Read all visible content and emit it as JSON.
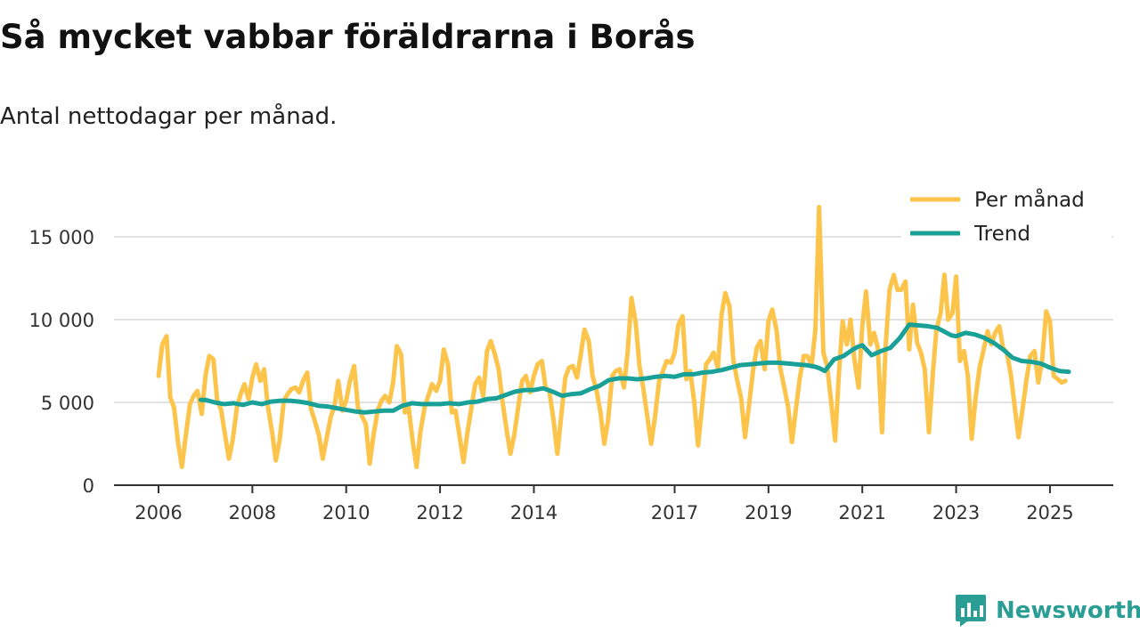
{
  "header": {
    "title": "Så mycket vabbar föräldrarna i Borås",
    "subtitle": "Antal nettodagar per månad."
  },
  "brand": {
    "name": "Newsworthy",
    "icon": "bar-chart-speech-bubble-icon",
    "color": "#2a9d94"
  },
  "chart_data": {
    "type": "line",
    "title": "Så mycket vabbar föräldrarna i Borås",
    "subtitle": "Antal nettodagar per månad.",
    "xlabel": "",
    "ylabel": "",
    "xlim": [
      2006.0,
      2025.4
    ],
    "ylim": [
      0,
      17000
    ],
    "x_ticks": [
      2006,
      2008,
      2010,
      2012,
      2014,
      2017,
      2019,
      2021,
      2023,
      2025
    ],
    "x_tick_labels": [
      "2006",
      "2008",
      "2010",
      "2012",
      "2014",
      "2017",
      "2019",
      "2021",
      "2023",
      "2025"
    ],
    "y_ticks": [
      0,
      5000,
      10000,
      15000
    ],
    "y_tick_labels": [
      "0",
      "5 000",
      "10 000",
      "15 000"
    ],
    "grid": true,
    "legend_position": "top-right",
    "series": [
      {
        "name": "Per månad",
        "color": "#fcc44b",
        "x": [
          2006.0,
          2006.08,
          2006.17,
          2006.25,
          2006.33,
          2006.42,
          2006.5,
          2006.58,
          2006.67,
          2006.75,
          2006.83,
          2006.92,
          2007.0,
          2007.08,
          2007.17,
          2007.25,
          2007.33,
          2007.42,
          2007.5,
          2007.58,
          2007.67,
          2007.75,
          2007.83,
          2007.92,
          2008.0,
          2008.08,
          2008.17,
          2008.25,
          2008.33,
          2008.42,
          2008.5,
          2008.58,
          2008.67,
          2008.75,
          2008.83,
          2008.92,
          2009.0,
          2009.08,
          2009.17,
          2009.25,
          2009.33,
          2009.42,
          2009.5,
          2009.58,
          2009.67,
          2009.75,
          2009.83,
          2009.92,
          2010.0,
          2010.08,
          2010.17,
          2010.25,
          2010.33,
          2010.42,
          2010.5,
          2010.58,
          2010.67,
          2010.75,
          2010.83,
          2010.92,
          2011.0,
          2011.08,
          2011.17,
          2011.25,
          2011.33,
          2011.42,
          2011.5,
          2011.58,
          2011.67,
          2011.75,
          2011.83,
          2011.92,
          2012.0,
          2012.08,
          2012.17,
          2012.25,
          2012.33,
          2012.42,
          2012.5,
          2012.58,
          2012.67,
          2012.75,
          2012.83,
          2012.92,
          2013.0,
          2013.08,
          2013.17,
          2013.25,
          2013.33,
          2013.42,
          2013.5,
          2013.58,
          2013.67,
          2013.75,
          2013.83,
          2013.92,
          2014.0,
          2014.08,
          2014.17,
          2014.25,
          2014.33,
          2014.42,
          2014.5,
          2014.58,
          2014.67,
          2014.75,
          2014.83,
          2014.92,
          2015.0,
          2015.08,
          2015.17,
          2015.25,
          2015.33,
          2015.42,
          2015.5,
          2015.58,
          2015.67,
          2015.75,
          2015.83,
          2015.92,
          2016.0,
          2016.08,
          2016.17,
          2016.25,
          2016.33,
          2016.42,
          2016.5,
          2016.58,
          2016.67,
          2016.75,
          2016.83,
          2016.92,
          2017.0,
          2017.08,
          2017.17,
          2017.25,
          2017.33,
          2017.42,
          2017.5,
          2017.58,
          2017.67,
          2017.75,
          2017.83,
          2017.92,
          2018.0,
          2018.08,
          2018.17,
          2018.25,
          2018.33,
          2018.42,
          2018.5,
          2018.58,
          2018.67,
          2018.75,
          2018.83,
          2018.92,
          2019.0,
          2019.08,
          2019.17,
          2019.25,
          2019.33,
          2019.42,
          2019.5,
          2019.58,
          2019.67,
          2019.75,
          2019.83,
          2019.92,
          2020.0,
          2020.08,
          2020.17,
          2020.25,
          2020.33,
          2020.42,
          2020.5,
          2020.58,
          2020.67,
          2020.75,
          2020.83,
          2020.92,
          2021.0,
          2021.08,
          2021.17,
          2021.25,
          2021.33,
          2021.42,
          2021.5,
          2021.58,
          2021.67,
          2021.75,
          2021.83,
          2021.92,
          2022.0,
          2022.08,
          2022.17,
          2022.25,
          2022.33,
          2022.42,
          2022.5,
          2022.58,
          2022.67,
          2022.75,
          2022.83,
          2022.92,
          2023.0,
          2023.08,
          2023.17,
          2023.25,
          2023.33,
          2023.42,
          2023.5,
          2023.58,
          2023.67,
          2023.75,
          2023.83,
          2023.92,
          2024.0,
          2024.08,
          2024.17,
          2024.25,
          2024.33,
          2024.42,
          2024.5,
          2024.58,
          2024.67,
          2024.75,
          2024.83,
          2024.92,
          2025.0,
          2025.08,
          2025.17,
          2025.25,
          2025.33
        ],
        "values": [
          6600,
          8500,
          9000,
          5300,
          4700,
          2500,
          1100,
          3000,
          4900,
          5400,
          5700,
          4300,
          6600,
          7800,
          7600,
          5100,
          4600,
          3000,
          1600,
          2700,
          4700,
          5500,
          6100,
          5200,
          6500,
          7300,
          6300,
          7000,
          4800,
          3200,
          1500,
          2700,
          5100,
          5500,
          5800,
          5900,
          5600,
          6300,
          6800,
          4600,
          3900,
          3000,
          1600,
          2800,
          4100,
          4800,
          6300,
          4500,
          5100,
          6300,
          7200,
          4700,
          4200,
          3700,
          1300,
          3000,
          4500,
          5100,
          5400,
          5000,
          6200,
          8400,
          7900,
          4400,
          4700,
          2600,
          1100,
          3200,
          4700,
          5400,
          6100,
          5700,
          6300,
          8200,
          7300,
          4400,
          4500,
          2900,
          1400,
          3100,
          4700,
          6100,
          6500,
          5400,
          8100,
          8700,
          7900,
          7000,
          5100,
          3300,
          1900,
          3000,
          4800,
          6300,
          6600,
          5600,
          6600,
          7300,
          7500,
          5900,
          5700,
          3900,
          1900,
          4100,
          6500,
          7100,
          7200,
          6500,
          7900,
          9400,
          8700,
          6600,
          5800,
          4400,
          2500,
          3900,
          6600,
          6900,
          7000,
          5900,
          8100,
          11300,
          9800,
          7200,
          5900,
          4100,
          2500,
          4100,
          6300,
          6900,
          7500,
          7400,
          8000,
          9700,
          10200,
          6400,
          6900,
          5000,
          2400,
          4600,
          7300,
          7600,
          8000,
          7100,
          10300,
          11600,
          10800,
          7600,
          6400,
          5200,
          2900,
          4700,
          6900,
          8300,
          8700,
          7000,
          9900,
          10600,
          9400,
          7100,
          6000,
          4700,
          2600,
          4500,
          6500,
          7800,
          7800,
          7200,
          9400,
          16800,
          8000,
          7200,
          5200,
          2700,
          6700,
          9900,
          8500,
          10000,
          7600,
          5900,
          9600,
          11700,
          8500,
          9200,
          8300,
          3200,
          8500,
          11800,
          12700,
          11800,
          11800,
          12300,
          8200,
          10900,
          8600,
          8000,
          7000,
          3200,
          6600,
          9400,
          10400,
          12700,
          10000,
          10400,
          12600,
          7500,
          8100,
          6600,
          2800,
          5400,
          7100,
          8100,
          9300,
          8500,
          9200,
          9600,
          8300,
          8000,
          6600,
          4700,
          2900,
          4700,
          6400,
          7800,
          8100,
          6200,
          7500,
          10500,
          9900,
          6600,
          6400,
          6200,
          6300
        ]
      },
      {
        "name": "Trend",
        "color": "#1aa197",
        "x": [
          2006.9,
          2007.0,
          2007.2,
          2007.4,
          2007.6,
          2007.8,
          2008.0,
          2008.2,
          2008.4,
          2008.6,
          2008.8,
          2009.0,
          2009.2,
          2009.4,
          2009.6,
          2009.8,
          2010.0,
          2010.2,
          2010.4,
          2010.6,
          2010.8,
          2011.0,
          2011.2,
          2011.4,
          2011.6,
          2011.8,
          2012.0,
          2012.2,
          2012.4,
          2012.6,
          2012.8,
          2013.0,
          2013.2,
          2013.4,
          2013.6,
          2013.8,
          2014.0,
          2014.2,
          2014.4,
          2014.6,
          2014.8,
          2015.0,
          2015.2,
          2015.4,
          2015.6,
          2015.8,
          2016.0,
          2016.2,
          2016.4,
          2016.6,
          2016.8,
          2017.0,
          2017.2,
          2017.4,
          2017.6,
          2017.8,
          2018.0,
          2018.2,
          2018.4,
          2018.6,
          2018.8,
          2019.0,
          2019.2,
          2019.4,
          2019.6,
          2019.8,
          2020.0,
          2020.1,
          2020.2,
          2020.4,
          2020.6,
          2020.8,
          2020.9,
          2021.0,
          2021.2,
          2021.4,
          2021.6,
          2021.8,
          2022.0,
          2022.2,
          2022.4,
          2022.6,
          2022.8,
          2022.9,
          2023.0,
          2023.2,
          2023.4,
          2023.6,
          2023.8,
          2024.0,
          2024.2,
          2024.4,
          2024.6,
          2024.8,
          2025.0,
          2025.2,
          2025.4
        ],
        "values": [
          5150,
          5150,
          5000,
          4900,
          4950,
          4850,
          5000,
          4900,
          5050,
          5100,
          5100,
          5050,
          4950,
          4800,
          4750,
          4650,
          4550,
          4450,
          4400,
          4450,
          4500,
          4500,
          4800,
          4950,
          4900,
          4900,
          4900,
          4950,
          4900,
          5000,
          5050,
          5200,
          5250,
          5450,
          5650,
          5750,
          5750,
          5850,
          5650,
          5400,
          5500,
          5550,
          5800,
          6000,
          6350,
          6450,
          6450,
          6400,
          6450,
          6550,
          6600,
          6550,
          6700,
          6700,
          6800,
          6850,
          6950,
          7100,
          7250,
          7300,
          7350,
          7400,
          7400,
          7350,
          7300,
          7250,
          7150,
          7050,
          6900,
          7600,
          7800,
          8200,
          8350,
          8450,
          7850,
          8100,
          8300,
          8900,
          9700,
          9650,
          9600,
          9500,
          9200,
          9050,
          9000,
          9200,
          9100,
          8900,
          8600,
          8200,
          7700,
          7500,
          7450,
          7350,
          7100,
          6900,
          6850
        ]
      }
    ]
  }
}
